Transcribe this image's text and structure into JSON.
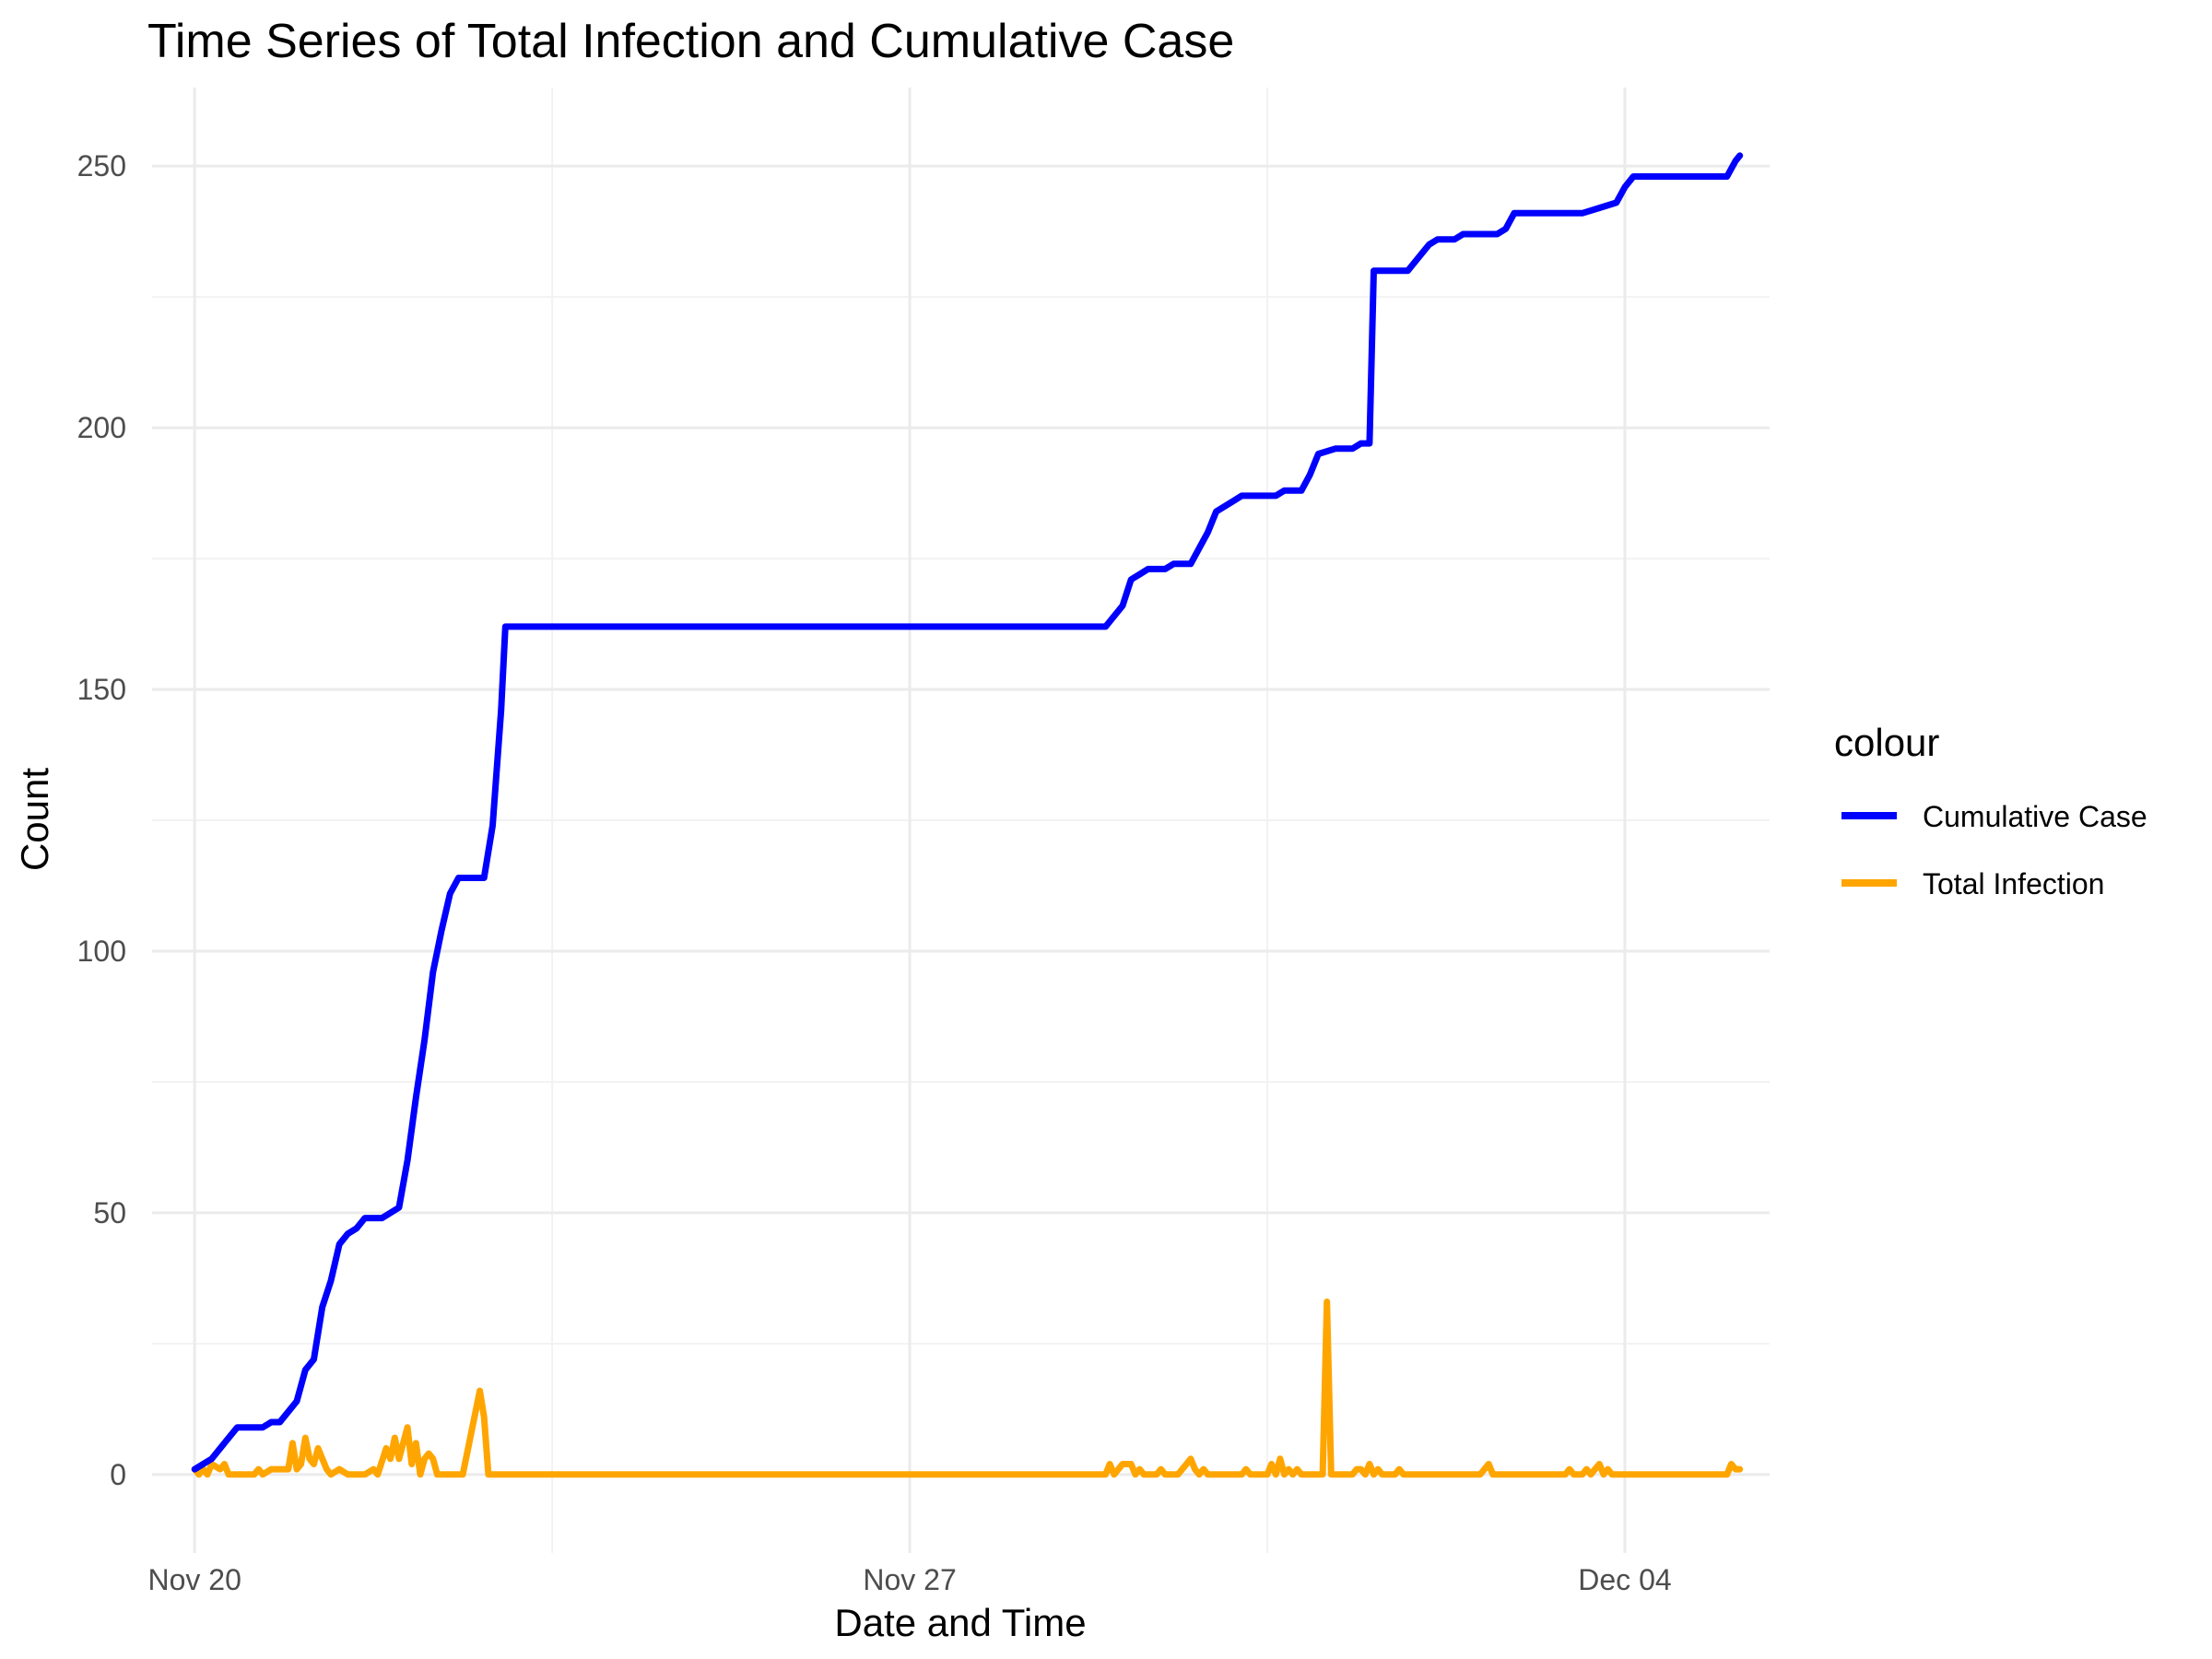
{
  "chart_data": {
    "type": "line",
    "title": "Time Series of Total Infection and Cumulative Case",
    "xlabel": "Date and Time",
    "ylabel": "Count",
    "xlim": [
      "2024-11-19 14:00",
      "2024-12-05 10:00"
    ],
    "ylim": [
      -15,
      265
    ],
    "x_ticks": [
      {
        "value": "2024-11-20 00:00",
        "label": "Nov 20"
      },
      {
        "value": "2024-11-27 00:00",
        "label": "Nov 27"
      },
      {
        "value": "2024-12-04 00:00",
        "label": "Dec 04"
      }
    ],
    "y_ticks": [
      0,
      50,
      100,
      150,
      200,
      250
    ],
    "grid": true,
    "legend": {
      "title": "colour",
      "position": "right",
      "entries": [
        {
          "label": "Cumulative Case",
          "color": "#0000ff"
        },
        {
          "label": "Total Infection",
          "color": "#ffa500"
        }
      ]
    },
    "series": [
      {
        "name": "Cumulative Case",
        "color": "#0000ff",
        "points": [
          [
            "2024-11-20 00:00",
            1
          ],
          [
            "2024-11-20 02:00",
            2
          ],
          [
            "2024-11-20 04:00",
            3
          ],
          [
            "2024-11-20 06:00",
            5
          ],
          [
            "2024-11-20 08:00",
            7
          ],
          [
            "2024-11-20 10:00",
            9
          ],
          [
            "2024-11-20 16:00",
            9
          ],
          [
            "2024-11-20 18:00",
            10
          ],
          [
            "2024-11-20 20:00",
            10
          ],
          [
            "2024-11-21 00:00",
            14
          ],
          [
            "2024-11-21 02:00",
            20
          ],
          [
            "2024-11-21 04:00",
            22
          ],
          [
            "2024-11-21 06:00",
            32
          ],
          [
            "2024-11-21 08:00",
            37
          ],
          [
            "2024-11-21 10:00",
            44
          ],
          [
            "2024-11-21 12:00",
            46
          ],
          [
            "2024-11-21 14:00",
            47
          ],
          [
            "2024-11-21 16:00",
            49
          ],
          [
            "2024-11-21 20:00",
            49
          ],
          [
            "2024-11-22 00:00",
            51
          ],
          [
            "2024-11-22 02:00",
            60
          ],
          [
            "2024-11-22 04:00",
            72
          ],
          [
            "2024-11-22 06:00",
            83
          ],
          [
            "2024-11-22 08:00",
            96
          ],
          [
            "2024-11-22 10:00",
            104
          ],
          [
            "2024-11-22 12:00",
            111
          ],
          [
            "2024-11-22 14:00",
            114
          ],
          [
            "2024-11-22 20:00",
            114
          ],
          [
            "2024-11-22 22:00",
            124
          ],
          [
            "2024-11-23 00:00",
            146
          ],
          [
            "2024-11-23 01:00",
            162
          ],
          [
            "2024-11-28 22:00",
            162
          ],
          [
            "2024-11-29 02:00",
            166
          ],
          [
            "2024-11-29 04:00",
            171
          ],
          [
            "2024-11-29 06:00",
            172
          ],
          [
            "2024-11-29 08:00",
            173
          ],
          [
            "2024-11-29 12:00",
            173
          ],
          [
            "2024-11-29 14:00",
            174
          ],
          [
            "2024-11-29 18:00",
            174
          ],
          [
            "2024-11-29 22:00",
            180
          ],
          [
            "2024-11-30 00:00",
            184
          ],
          [
            "2024-11-30 04:00",
            186
          ],
          [
            "2024-11-30 06:00",
            187
          ],
          [
            "2024-11-30 14:00",
            187
          ],
          [
            "2024-11-30 16:00",
            188
          ],
          [
            "2024-11-30 20:00",
            188
          ],
          [
            "2024-11-30 22:00",
            191
          ],
          [
            "2024-12-01 00:00",
            195
          ],
          [
            "2024-12-01 04:00",
            196
          ],
          [
            "2024-12-01 08:00",
            196
          ],
          [
            "2024-12-01 10:00",
            197
          ],
          [
            "2024-12-01 12:00",
            197
          ],
          [
            "2024-12-01 13:00",
            230
          ],
          [
            "2024-12-01 21:00",
            230
          ],
          [
            "2024-12-02 00:00",
            233
          ],
          [
            "2024-12-02 02:00",
            235
          ],
          [
            "2024-12-02 04:00",
            236
          ],
          [
            "2024-12-02 08:00",
            236
          ],
          [
            "2024-12-02 10:00",
            237
          ],
          [
            "2024-12-02 18:00",
            237
          ],
          [
            "2024-12-02 20:00",
            238
          ],
          [
            "2024-12-02 22:00",
            241
          ],
          [
            "2024-12-03 14:00",
            241
          ],
          [
            "2024-12-03 18:00",
            242
          ],
          [
            "2024-12-03 22:00",
            243
          ],
          [
            "2024-12-04 00:00",
            246
          ],
          [
            "2024-12-04 02:00",
            248
          ],
          [
            "2024-12-05 00:00",
            248
          ],
          [
            "2024-12-05 02:00",
            251
          ],
          [
            "2024-12-05 03:00",
            252
          ]
        ]
      },
      {
        "name": "Total Infection",
        "color": "#ffa500",
        "points": [
          [
            "2024-11-20 00:00",
            1
          ],
          [
            "2024-11-20 01:00",
            0
          ],
          [
            "2024-11-20 02:00",
            1
          ],
          [
            "2024-11-20 03:00",
            0
          ],
          [
            "2024-11-20 04:00",
            2
          ],
          [
            "2024-11-20 06:00",
            1
          ],
          [
            "2024-11-20 07:00",
            2
          ],
          [
            "2024-11-20 08:00",
            0
          ],
          [
            "2024-11-20 14:00",
            0
          ],
          [
            "2024-11-20 15:00",
            1
          ],
          [
            "2024-11-20 16:00",
            0
          ],
          [
            "2024-11-20 18:00",
            1
          ],
          [
            "2024-11-20 20:00",
            1
          ],
          [
            "2024-11-20 22:00",
            1
          ],
          [
            "2024-11-20 23:00",
            6
          ],
          [
            "2024-11-21 00:00",
            1
          ],
          [
            "2024-11-21 01:00",
            2
          ],
          [
            "2024-11-21 02:00",
            7
          ],
          [
            "2024-11-21 03:00",
            3
          ],
          [
            "2024-11-21 04:00",
            2
          ],
          [
            "2024-11-21 05:00",
            5
          ],
          [
            "2024-11-21 07:00",
            1
          ],
          [
            "2024-11-21 08:00",
            0
          ],
          [
            "2024-11-21 10:00",
            1
          ],
          [
            "2024-11-21 12:00",
            0
          ],
          [
            "2024-11-21 16:00",
            0
          ],
          [
            "2024-11-21 18:00",
            1
          ],
          [
            "2024-11-21 19:00",
            0
          ],
          [
            "2024-11-21 21:00",
            5
          ],
          [
            "2024-11-21 22:00",
            3
          ],
          [
            "2024-11-21 23:00",
            7
          ],
          [
            "2024-11-22 00:00",
            3
          ],
          [
            "2024-11-22 02:00",
            9
          ],
          [
            "2024-11-22 03:00",
            2
          ],
          [
            "2024-11-22 04:00",
            6
          ],
          [
            "2024-11-22 05:00",
            0
          ],
          [
            "2024-11-22 06:00",
            3
          ],
          [
            "2024-11-22 07:00",
            4
          ],
          [
            "2024-11-22 08:00",
            3
          ],
          [
            "2024-11-22 09:00",
            0
          ],
          [
            "2024-11-22 15:00",
            0
          ],
          [
            "2024-11-22 19:00",
            16
          ],
          [
            "2024-11-22 20:00",
            11
          ],
          [
            "2024-11-22 21:00",
            0
          ],
          [
            "2024-11-28 22:00",
            0
          ],
          [
            "2024-11-28 23:00",
            2
          ],
          [
            "2024-11-29 00:00",
            0
          ],
          [
            "2024-11-29 02:00",
            2
          ],
          [
            "2024-11-29 04:00",
            2
          ],
          [
            "2024-11-29 05:00",
            0
          ],
          [
            "2024-11-29 06:00",
            1
          ],
          [
            "2024-11-29 07:00",
            0
          ],
          [
            "2024-11-29 10:00",
            0
          ],
          [
            "2024-11-29 11:00",
            1
          ],
          [
            "2024-11-29 12:00",
            0
          ],
          [
            "2024-11-29 15:00",
            0
          ],
          [
            "2024-11-29 17:00",
            2
          ],
          [
            "2024-11-29 18:00",
            3
          ],
          [
            "2024-11-29 19:00",
            1
          ],
          [
            "2024-11-29 20:00",
            0
          ],
          [
            "2024-11-29 21:00",
            1
          ],
          [
            "2024-11-29 22:00",
            0
          ],
          [
            "2024-11-30 06:00",
            0
          ],
          [
            "2024-11-30 07:00",
            1
          ],
          [
            "2024-11-30 08:00",
            0
          ],
          [
            "2024-11-30 12:00",
            0
          ],
          [
            "2024-11-30 13:00",
            2
          ],
          [
            "2024-11-30 14:00",
            0
          ],
          [
            "2024-11-30 15:00",
            3
          ],
          [
            "2024-11-30 16:00",
            0
          ],
          [
            "2024-11-30 17:00",
            1
          ],
          [
            "2024-11-30 18:00",
            0
          ],
          [
            "2024-11-30 19:00",
            1
          ],
          [
            "2024-11-30 20:00",
            0
          ],
          [
            "2024-12-01 01:00",
            0
          ],
          [
            "2024-12-01 02:00",
            33
          ],
          [
            "2024-12-01 03:00",
            0
          ],
          [
            "2024-12-01 08:00",
            0
          ],
          [
            "2024-12-01 09:00",
            1
          ],
          [
            "2024-12-01 10:00",
            1
          ],
          [
            "2024-12-01 11:00",
            0
          ],
          [
            "2024-12-01 12:00",
            2
          ],
          [
            "2024-12-01 13:00",
            0
          ],
          [
            "2024-12-01 14:00",
            1
          ],
          [
            "2024-12-01 15:00",
            0
          ],
          [
            "2024-12-01 18:00",
            0
          ],
          [
            "2024-12-01 19:00",
            1
          ],
          [
            "2024-12-01 20:00",
            0
          ],
          [
            "2024-12-02 14:00",
            0
          ],
          [
            "2024-12-02 15:00",
            1
          ],
          [
            "2024-12-02 16:00",
            2
          ],
          [
            "2024-12-02 17:00",
            0
          ],
          [
            "2024-12-03 10:00",
            0
          ],
          [
            "2024-12-03 11:00",
            1
          ],
          [
            "2024-12-03 12:00",
            0
          ],
          [
            "2024-12-03 14:00",
            0
          ],
          [
            "2024-12-03 15:00",
            1
          ],
          [
            "2024-12-03 16:00",
            0
          ],
          [
            "2024-12-03 17:00",
            1
          ],
          [
            "2024-12-03 18:00",
            2
          ],
          [
            "2024-12-03 19:00",
            0
          ],
          [
            "2024-12-03 20:00",
            1
          ],
          [
            "2024-12-03 21:00",
            0
          ],
          [
            "2024-12-05 00:00",
            0
          ],
          [
            "2024-12-05 01:00",
            2
          ],
          [
            "2024-12-05 02:00",
            1
          ],
          [
            "2024-12-05 03:00",
            1
          ]
        ]
      }
    ]
  }
}
